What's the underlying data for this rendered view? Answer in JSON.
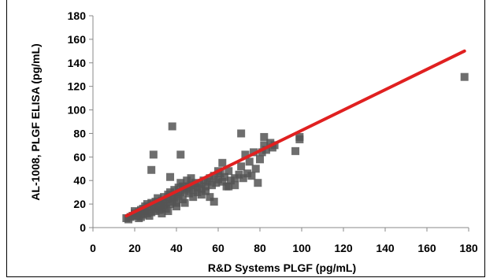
{
  "chart_data": {
    "type": "scatter",
    "xlabel": "R&D Systems PLGF (pg/mL)",
    "ylabel": "AL-1008, PLGF ELISA (pg/mL)",
    "xlim": [
      0,
      180
    ],
    "ylim": [
      0,
      180
    ],
    "xticks": [
      "0",
      "20",
      "40",
      "60",
      "80",
      "100",
      "120",
      "140",
      "160",
      "180"
    ],
    "yticks": [
      "0",
      "20",
      "40",
      "60",
      "80",
      "100",
      "120",
      "140",
      "160",
      "180"
    ],
    "grid": false,
    "marker_color": "#555555",
    "trendline_color": "#e02020",
    "trendline": {
      "x": [
        16,
        178
      ],
      "y": [
        10,
        150
      ]
    },
    "points": [
      [
        16,
        8
      ],
      [
        17,
        7
      ],
      [
        18,
        9
      ],
      [
        19,
        10
      ],
      [
        20,
        12
      ],
      [
        20,
        14
      ],
      [
        21,
        10
      ],
      [
        22,
        8
      ],
      [
        22,
        13
      ],
      [
        23,
        15
      ],
      [
        24,
        11
      ],
      [
        24,
        16
      ],
      [
        25,
        14
      ],
      [
        25,
        18
      ],
      [
        26,
        12
      ],
      [
        26,
        20
      ],
      [
        27,
        17
      ],
      [
        28,
        13
      ],
      [
        28,
        21
      ],
      [
        29,
        16
      ],
      [
        29,
        19
      ],
      [
        30,
        14
      ],
      [
        30,
        22
      ],
      [
        31,
        18
      ],
      [
        31,
        25
      ],
      [
        32,
        15
      ],
      [
        32,
        20
      ],
      [
        33,
        23
      ],
      [
        33,
        17
      ],
      [
        34,
        19
      ],
      [
        34,
        26
      ],
      [
        35,
        21
      ],
      [
        35,
        16
      ],
      [
        36,
        24
      ],
      [
        36,
        28
      ],
      [
        37,
        20
      ],
      [
        37,
        30
      ],
      [
        38,
        22
      ],
      [
        38,
        26
      ],
      [
        39,
        32
      ],
      [
        39,
        25
      ],
      [
        40,
        28
      ],
      [
        40,
        21
      ],
      [
        41,
        34
      ],
      [
        41,
        27
      ],
      [
        42,
        30
      ],
      [
        42,
        38
      ],
      [
        43,
        24
      ],
      [
        43,
        35
      ],
      [
        44,
        31
      ],
      [
        45,
        33
      ],
      [
        45,
        40
      ],
      [
        46,
        29
      ],
      [
        47,
        36
      ],
      [
        48,
        32
      ],
      [
        49,
        38
      ],
      [
        50,
        34
      ],
      [
        50,
        30
      ],
      [
        51,
        37
      ],
      [
        52,
        33
      ],
      [
        53,
        40
      ],
      [
        54,
        35
      ],
      [
        55,
        39
      ],
      [
        56,
        42
      ],
      [
        57,
        36
      ],
      [
        58,
        44
      ],
      [
        59,
        38
      ],
      [
        60,
        41
      ],
      [
        61,
        46
      ],
      [
        62,
        39
      ],
      [
        63,
        43
      ],
      [
        64,
        35
      ],
      [
        65,
        48
      ],
      [
        66,
        40
      ],
      [
        68,
        36
      ],
      [
        70,
        45
      ],
      [
        71,
        52
      ],
      [
        72,
        42
      ],
      [
        74,
        46
      ],
      [
        75,
        56
      ],
      [
        76,
        44
      ],
      [
        78,
        50
      ],
      [
        79,
        38
      ],
      [
        80,
        58
      ],
      [
        81,
        64
      ],
      [
        82,
        70
      ],
      [
        83,
        66
      ],
      [
        85,
        72
      ],
      [
        86,
        68
      ],
      [
        87,
        70
      ],
      [
        28,
        49
      ],
      [
        29,
        62
      ],
      [
        37,
        43
      ],
      [
        38,
        86
      ],
      [
        42,
        62
      ],
      [
        44,
        21
      ],
      [
        58,
        22
      ],
      [
        60,
        48
      ],
      [
        62,
        55
      ],
      [
        65,
        35
      ],
      [
        68,
        42
      ],
      [
        71,
        80
      ],
      [
        73,
        62
      ],
      [
        77,
        64
      ],
      [
        82,
        77
      ],
      [
        97,
        65
      ],
      [
        99,
        77
      ],
      [
        99,
        75
      ],
      [
        178,
        128
      ],
      [
        46,
        35
      ],
      [
        52,
        28
      ],
      [
        56,
        26
      ],
      [
        33,
        12
      ],
      [
        27,
        10
      ],
      [
        23,
        9
      ],
      [
        47,
        42
      ],
      [
        54,
        31
      ],
      [
        48,
        26
      ],
      [
        36,
        14
      ],
      [
        40,
        18
      ]
    ]
  }
}
